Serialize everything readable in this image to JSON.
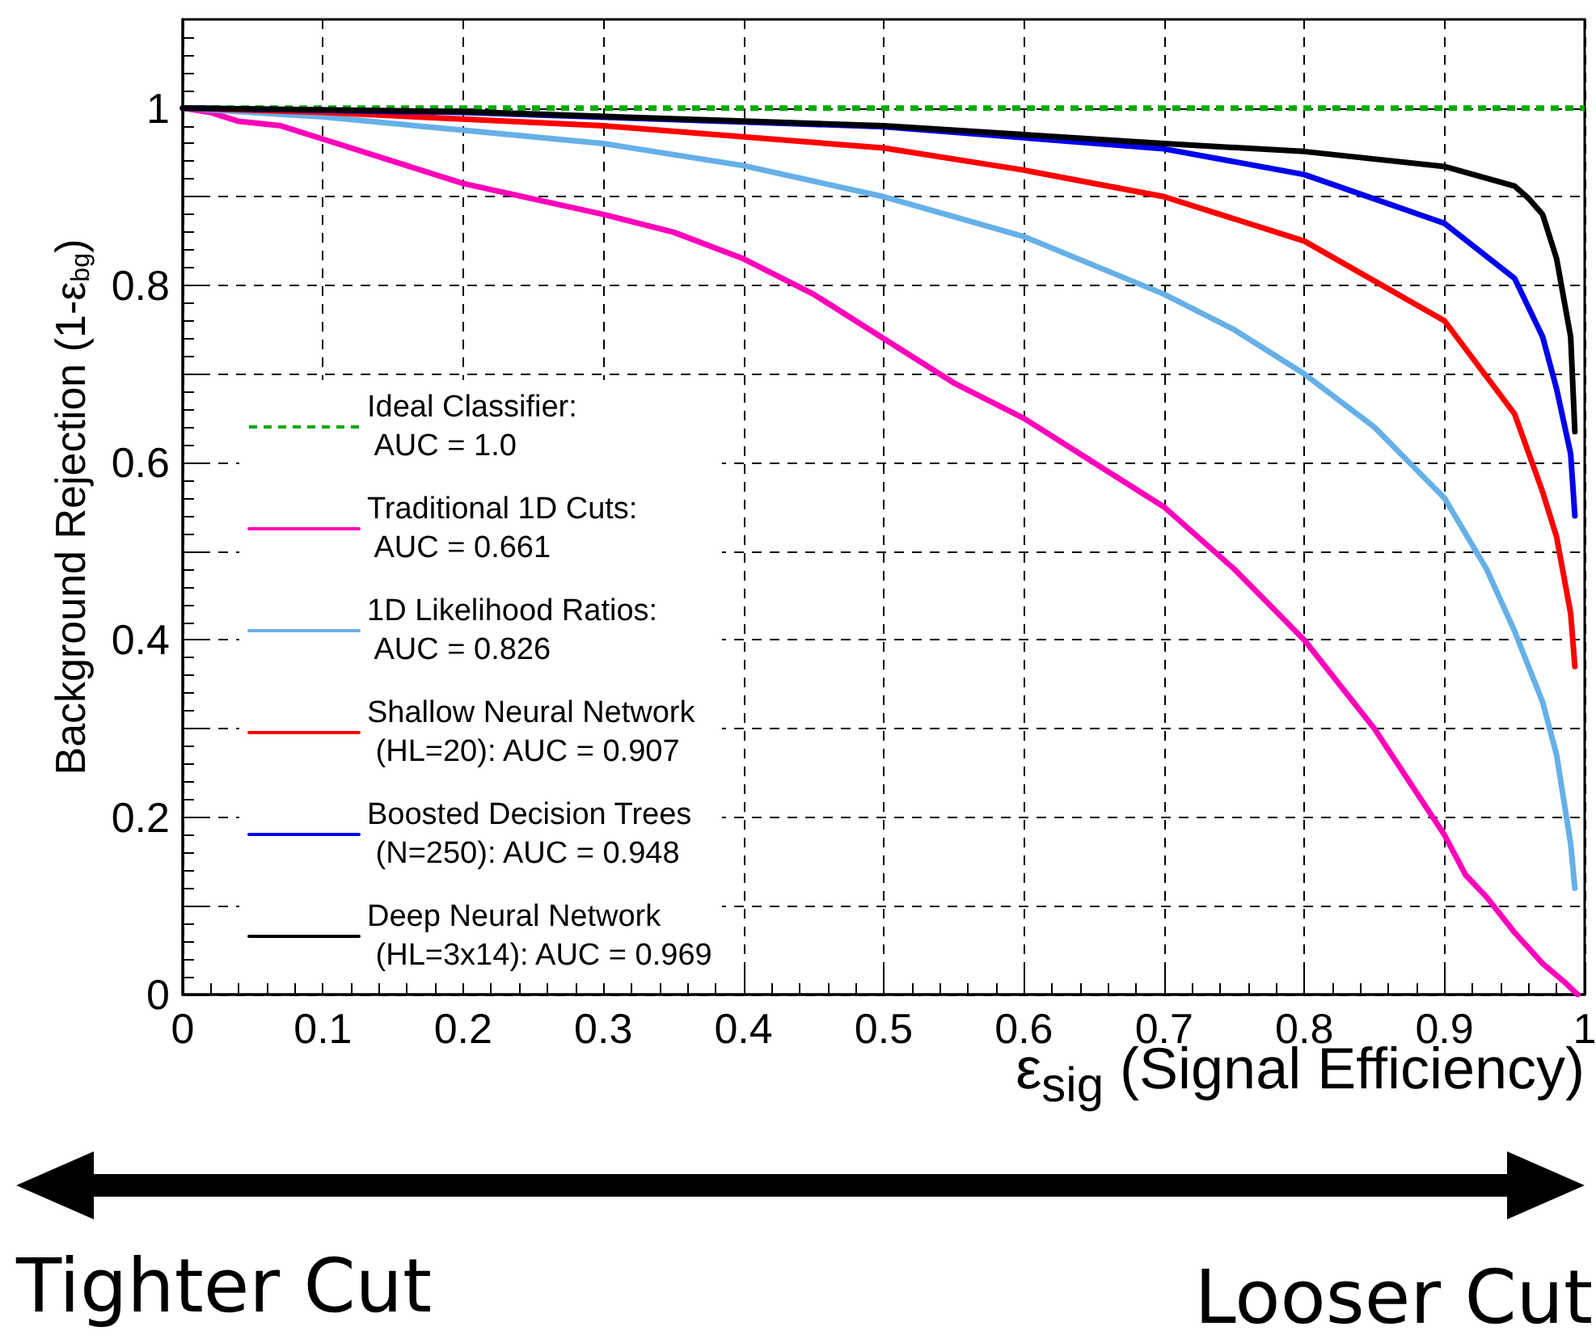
{
  "chart_data": {
    "type": "line",
    "xlabel": "ε$_{sig}$ (Signal Efficiency)",
    "ylabel": "Background Rejection (1-ε$_{bg}$)",
    "xlim": [
      0,
      1
    ],
    "xticks": [
      0,
      0.1,
      0.2,
      0.3,
      0.4,
      0.5,
      0.6,
      0.7,
      0.8,
      0.9,
      1
    ],
    "ylim": [
      0,
      1.1
    ],
    "yticks": [
      0,
      {
        "value": 0.1,
        "label": null
      },
      0.2,
      {
        "value": 0.3,
        "label": null
      },
      0.4,
      {
        "value": 0.5,
        "label": null
      },
      0.6,
      {
        "value": 0.7,
        "label": null
      },
      0.8,
      {
        "value": 0.9,
        "label": null
      },
      1
    ],
    "grid": true,
    "legend": "left",
    "marker": "none",
    "annotations": [
      "Tighter Cut",
      "Looser Cut"
    ],
    "series": [
      {
        "name": "Ideal Classifier:\n AUC = 1.0",
        "color": "#00aa00",
        "line_style": "dotted",
        "x": [
          0,
          1
        ],
        "values": [
          1,
          1
        ]
      },
      {
        "name": "Traditional 1D Cuts:\n AUC = 0.661",
        "color": "#ff00bb",
        "x": [
          0,
          0.02,
          0.04,
          0.07,
          0.1,
          0.15,
          0.2,
          0.3,
          0.35,
          0.4,
          0.45,
          0.5,
          0.55,
          0.6,
          0.65,
          0.7,
          0.75,
          0.8,
          0.85,
          0.9,
          0.915,
          0.93,
          0.95,
          0.97,
          0.985,
          0.995
        ],
        "values": [
          1,
          0.995,
          0.985,
          0.98,
          0.965,
          0.94,
          0.915,
          0.88,
          0.86,
          0.83,
          0.79,
          0.74,
          0.69,
          0.65,
          0.6,
          0.55,
          0.48,
          0.4,
          0.3,
          0.18,
          0.135,
          0.11,
          0.07,
          0.035,
          0.015,
          0
        ]
      },
      {
        "name": "1D Likelihood Ratios:\n AUC = 0.826",
        "color": "#66b0e8",
        "x": [
          0,
          0.1,
          0.2,
          0.3,
          0.4,
          0.5,
          0.6,
          0.7,
          0.75,
          0.8,
          0.85,
          0.9,
          0.93,
          0.95,
          0.97,
          0.98,
          0.99,
          0.993
        ],
        "values": [
          1,
          0.99,
          0.975,
          0.96,
          0.935,
          0.9,
          0.855,
          0.79,
          0.75,
          0.7,
          0.64,
          0.56,
          0.48,
          0.41,
          0.33,
          0.27,
          0.17,
          0.12
        ]
      },
      {
        "name": "Shallow Neural Network\n (HL=20): AUC = 0.907",
        "color": "#ff0000",
        "x": [
          0,
          0.1,
          0.3,
          0.5,
          0.6,
          0.7,
          0.8,
          0.9,
          0.95,
          0.97,
          0.98,
          0.99,
          0.993
        ],
        "values": [
          1,
          0.995,
          0.98,
          0.955,
          0.93,
          0.9,
          0.85,
          0.76,
          0.655,
          0.567,
          0.516,
          0.43,
          0.37
        ]
      },
      {
        "name": "Boosted Decision Trees\n (N=250): AUC = 0.948",
        "color": "#0000ee",
        "x": [
          0,
          0.2,
          0.5,
          0.7,
          0.8,
          0.9,
          0.95,
          0.97,
          0.98,
          0.99,
          0.993
        ],
        "values": [
          1,
          0.995,
          0.979,
          0.954,
          0.925,
          0.87,
          0.808,
          0.742,
          0.683,
          0.61,
          0.54
        ]
      },
      {
        "name": "Deep Neural Network\n (HL=3x14): AUC = 0.969",
        "color": "#000000",
        "x": [
          0,
          0.2,
          0.5,
          0.7,
          0.8,
          0.9,
          0.95,
          0.96,
          0.97,
          0.98,
          0.99,
          0.993
        ],
        "values": [
          1,
          0.996,
          0.98,
          0.96,
          0.951,
          0.934,
          0.912,
          0.898,
          0.88,
          0.83,
          0.742,
          0.635
        ]
      }
    ]
  }
}
